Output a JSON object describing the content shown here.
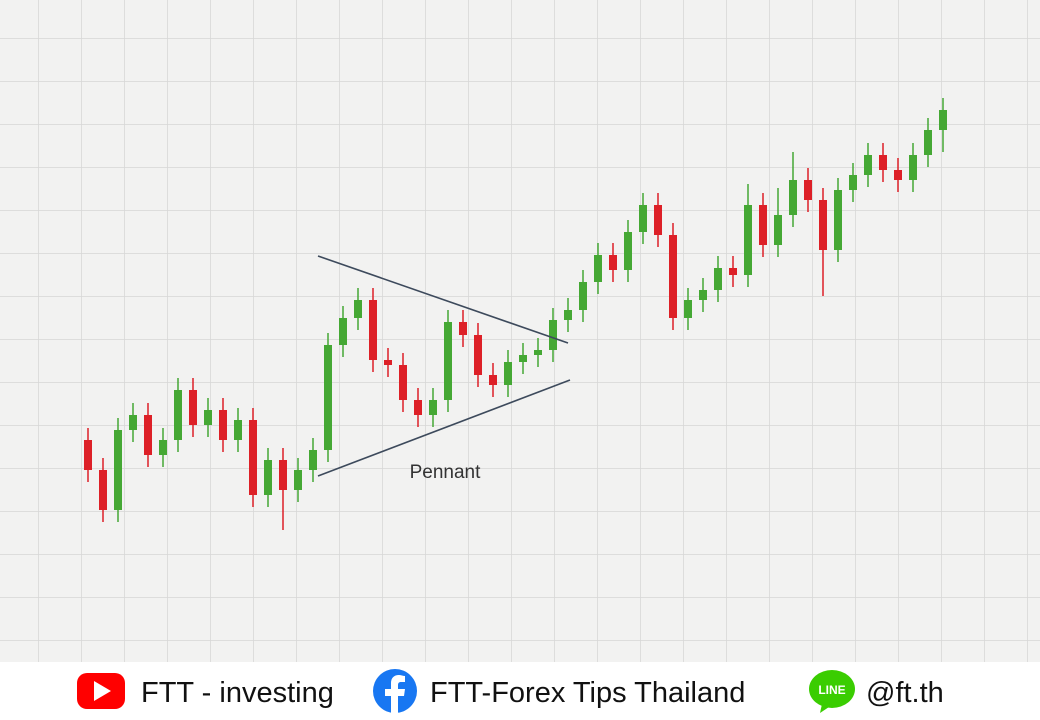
{
  "chart_data": {
    "type": "candlestick",
    "annotation": "Pennant",
    "up_color": "#45a834",
    "down_color": "#dd2027",
    "ylim": [
      0,
      140
    ],
    "open": [
      30,
      22.5,
      12.5,
      32.5,
      36.25,
      26.25,
      30,
      42.5,
      33.75,
      37.5,
      30,
      35,
      16.25,
      25,
      17.5,
      22.5,
      27.5,
      53.75,
      60.5,
      65,
      50,
      48.75,
      40,
      36.25,
      40,
      59.5,
      56.25,
      46.25,
      43.75,
      49.5,
      51.25,
      52.5,
      60,
      62.5,
      69.5,
      76.25,
      72.5,
      82,
      88.75,
      81.25,
      60.5,
      65,
      67.5,
      73,
      71.25,
      88.75,
      78.75,
      86.25,
      95,
      90,
      77.5,
      92.5,
      96.25,
      101.25,
      97.5,
      95,
      101.25,
      107.5
    ],
    "close": [
      22.5,
      12.5,
      32.5,
      36.25,
      26.25,
      30,
      42.5,
      33.75,
      37.5,
      30,
      35,
      16.25,
      25,
      17.5,
      22.5,
      27.5,
      53.75,
      60.5,
      65,
      50,
      48.75,
      40,
      36.25,
      40,
      59.5,
      56.25,
      46.25,
      43.75,
      49.5,
      51.25,
      52.5,
      60,
      62.5,
      69.5,
      76.25,
      72.5,
      82,
      88.75,
      81.25,
      60.5,
      65,
      67.5,
      73,
      71.25,
      88.75,
      78.75,
      86.25,
      95,
      90,
      77.5,
      92.5,
      96.25,
      101.25,
      97.5,
      95,
      101.25,
      107.5,
      112.5
    ],
    "high": [
      33,
      25.5,
      35.5,
      39.25,
      39.25,
      33,
      45.5,
      45.5,
      40.5,
      40.5,
      38,
      38,
      28,
      28,
      25.5,
      30.5,
      56.75,
      63.5,
      68,
      68,
      53,
      51.75,
      43,
      43,
      62.5,
      62.5,
      59.25,
      49.25,
      52.5,
      54.25,
      55.5,
      63,
      65.5,
      72.5,
      79.25,
      79.25,
      85,
      91.75,
      91.75,
      84.25,
      68,
      70.5,
      76,
      76,
      94,
      91.75,
      93,
      102,
      98,
      93,
      95.5,
      99.25,
      104.25,
      104.25,
      100.5,
      104.25,
      110.5,
      115.5
    ],
    "low": [
      19.5,
      9.5,
      9.5,
      29.5,
      23.25,
      23.25,
      27,
      30.75,
      30.75,
      27,
      27,
      13.25,
      13.25,
      7.5,
      14.5,
      19.5,
      24.5,
      50.75,
      57.5,
      47,
      45.75,
      37,
      33.25,
      33.25,
      37,
      53.25,
      43.25,
      40.75,
      40.75,
      46.5,
      48.25,
      49.5,
      57,
      59.5,
      66.5,
      69.5,
      69.5,
      79,
      78.25,
      57.5,
      57.5,
      62,
      64.5,
      68.25,
      68.25,
      75.75,
      75.75,
      83.25,
      87,
      66,
      74.5,
      89.5,
      93.25,
      94.5,
      92,
      92,
      98.25,
      102
    ]
  },
  "footer": {
    "youtube": "FTT - investing",
    "facebook": "FTT-Forex Tips Thailand",
    "line_icon": "LINE",
    "line": "@ft.th"
  }
}
